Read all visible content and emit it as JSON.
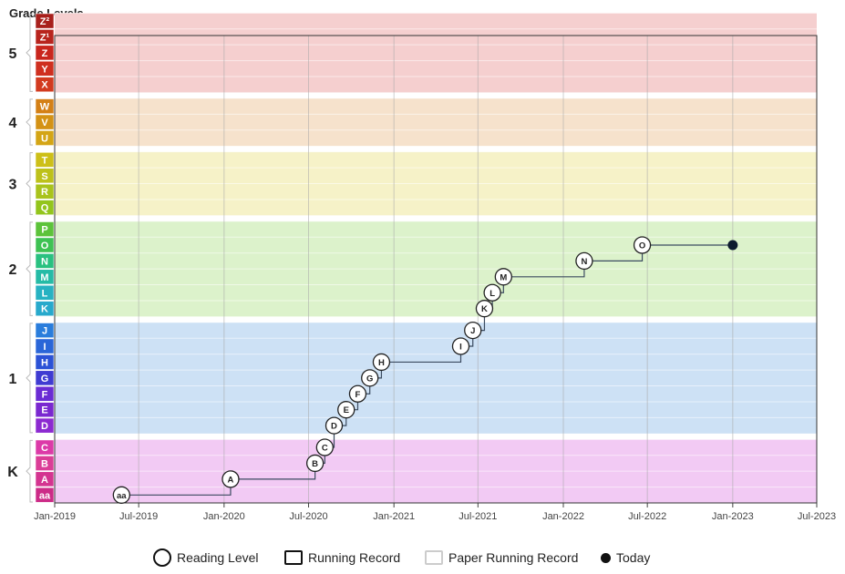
{
  "title": "Grade Levels",
  "chart_data": {
    "type": "line",
    "title": "Grade Levels",
    "x_ticks": [
      "Jan-2019",
      "Jul-2019",
      "Jan-2020",
      "Jul-2020",
      "Jan-2021",
      "Jul-2021",
      "Jan-2022",
      "Jul-2022",
      "Jan-2023",
      "Jul-2023"
    ],
    "xlim": [
      "2019-01-01",
      "2023-07-01"
    ],
    "grades": [
      {
        "label": "K",
        "levels": [
          "aa",
          "A",
          "B",
          "C"
        ],
        "band_color": "#f2caf4",
        "level_colors": [
          "#cc2b87",
          "#d43490",
          "#db3d97",
          "#dc3aa8"
        ]
      },
      {
        "label": "1",
        "levels": [
          "D",
          "E",
          "F",
          "G",
          "H",
          "I",
          "J"
        ],
        "band_color": "#cde1f5",
        "level_colors": [
          "#8c2ad1",
          "#7a28d0",
          "#6a2cd4",
          "#3f3bd2",
          "#2b52d6",
          "#2a66d8",
          "#2a7ddc"
        ]
      },
      {
        "label": "2",
        "levels": [
          "K",
          "L",
          "M",
          "N",
          "O",
          "P"
        ],
        "band_color": "#dcf2cb",
        "level_colors": [
          "#27a9cc",
          "#27b2c2",
          "#25bba6",
          "#29c180",
          "#3ec253",
          "#5cc33a"
        ]
      },
      {
        "label": "3",
        "levels": [
          "Q",
          "R",
          "S",
          "T"
        ],
        "band_color": "#f6f2c8",
        "level_colors": [
          "#93c51c",
          "#a9c31b",
          "#bdc11a",
          "#cdbf18"
        ]
      },
      {
        "label": "4",
        "levels": [
          "U",
          "V",
          "W"
        ],
        "band_color": "#f6e2cc",
        "level_colors": [
          "#d4a515",
          "#d49215",
          "#d48016"
        ]
      },
      {
        "label": "5",
        "levels": [
          "X",
          "Y",
          "Z",
          "Z¹",
          "Z²"
        ],
        "band_color": "#f5cfcf",
        "level_colors": [
          "#d23a1f",
          "#cf2f1f",
          "#c9261d",
          "#b8241d",
          "#a8201c"
        ]
      }
    ],
    "series": [
      {
        "type": "reading_level",
        "points": [
          {
            "date": "2019-05-25",
            "level": "aa"
          },
          {
            "date": "2020-01-15",
            "level": "A"
          },
          {
            "date": "2020-07-15",
            "level": "B"
          },
          {
            "date": "2020-08-05",
            "level": "C"
          },
          {
            "date": "2020-08-25",
            "level": "D"
          },
          {
            "date": "2020-09-20",
            "level": "E"
          },
          {
            "date": "2020-10-15",
            "level": "F"
          },
          {
            "date": "2020-11-10",
            "level": "G"
          },
          {
            "date": "2020-12-05",
            "level": "H"
          },
          {
            "date": "2021-05-25",
            "level": "I"
          },
          {
            "date": "2021-06-20",
            "level": "J"
          },
          {
            "date": "2021-07-15",
            "level": "K"
          },
          {
            "date": "2021-08-01",
            "level": "L"
          },
          {
            "date": "2021-08-25",
            "level": "M"
          },
          {
            "date": "2022-02-15",
            "level": "N"
          },
          {
            "date": "2022-06-20",
            "level": "O"
          }
        ]
      },
      {
        "type": "today",
        "points": [
          {
            "date": "2023-01-01",
            "level": "O"
          }
        ]
      }
    ],
    "legend": [
      "Reading Level",
      "Running Record",
      "Paper Running Record",
      "Today"
    ],
    "legend_position": "bottom",
    "grid": true
  }
}
